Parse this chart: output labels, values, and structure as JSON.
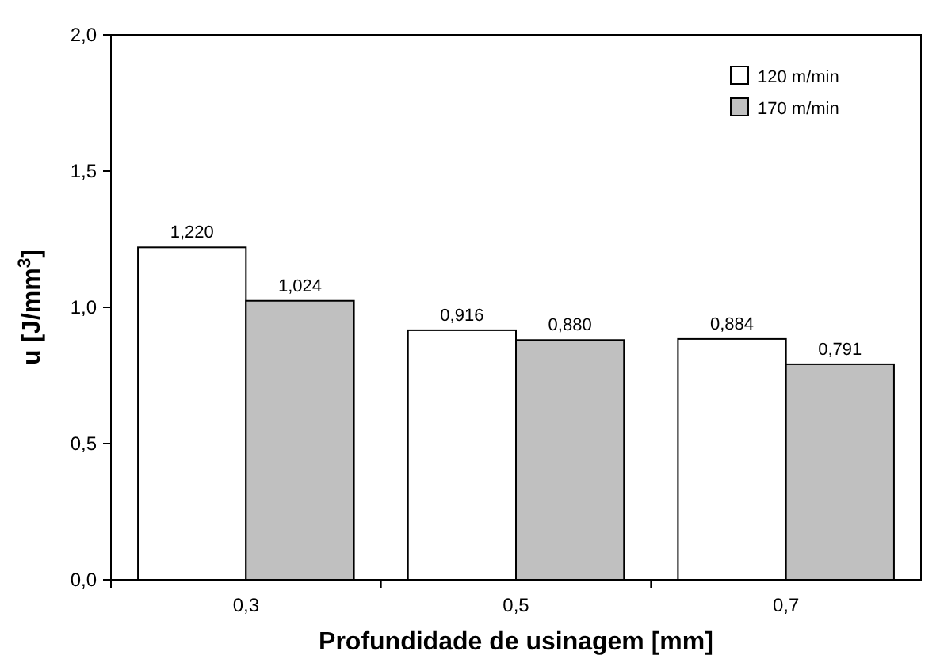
{
  "chart_data": {
    "type": "bar",
    "xlabel": "Profundidade de usinagem [mm]",
    "ylabel": "u [J/mm$^{3}$]",
    "categories": [
      "0,3",
      "0,5",
      "0,7"
    ],
    "series": [
      {
        "name": "120 m/min",
        "color": "#ffffff",
        "values": [
          1.22,
          0.916,
          0.884
        ],
        "value_labels": [
          "1,220",
          "0,916",
          "0,884"
        ]
      },
      {
        "name": "170 m/min",
        "color": "#c0c0c0",
        "values": [
          1.024,
          0.88,
          0.791
        ],
        "value_labels": [
          "1,024",
          "0,880",
          "0,791"
        ]
      }
    ],
    "ylim": [
      0,
      2
    ],
    "yticks": [
      {
        "value": 0,
        "label": "0,0"
      },
      {
        "value": 0.5,
        "label": "0,5"
      },
      {
        "value": 1,
        "label": "1,0"
      },
      {
        "value": 1.5,
        "label": "1,5"
      },
      {
        "value": 2,
        "label": "2,0"
      }
    ],
    "legend": "top right",
    "grid": false
  }
}
